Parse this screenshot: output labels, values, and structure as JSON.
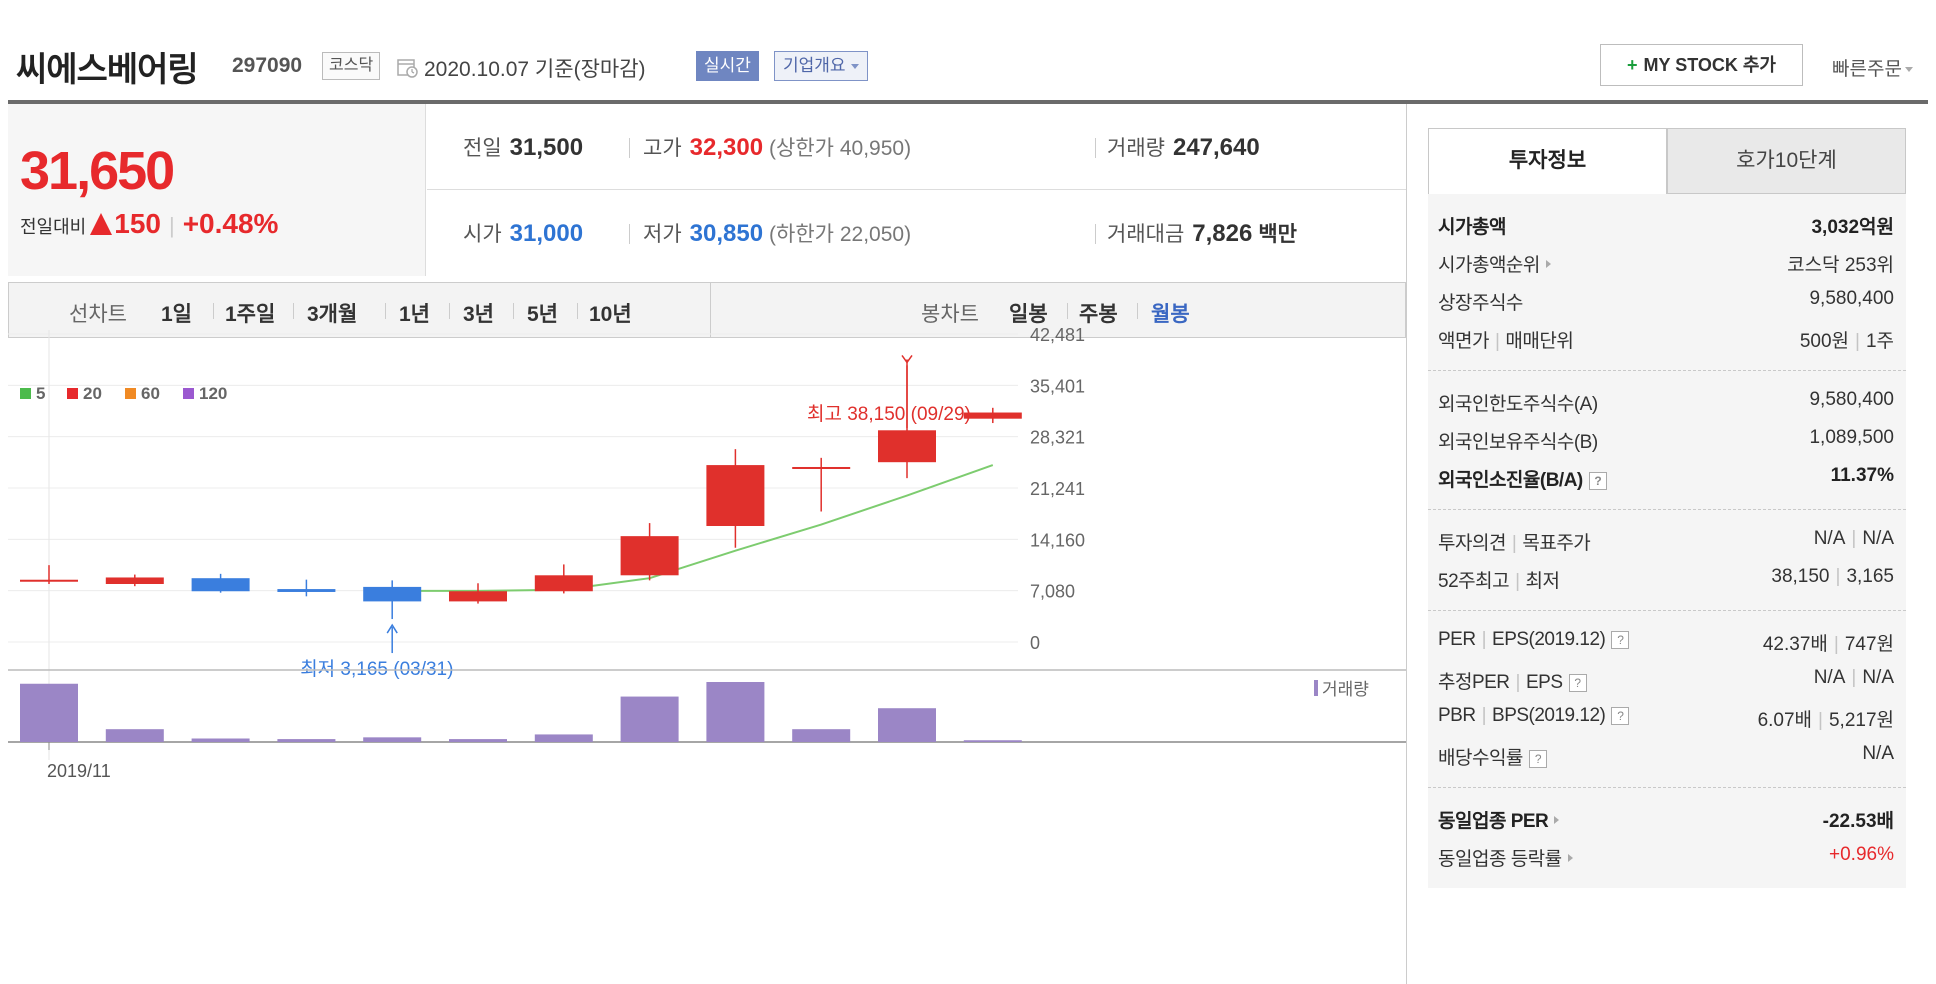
{
  "header": {
    "company_name": "씨에스베어링",
    "stock_code": "297090",
    "market": "코스닥",
    "base_date": "2020.10.07  기준(장마감)",
    "realtime_label": "실시간",
    "company_info_label": "기업개요",
    "mystock_label": "MY STOCK 추가",
    "mystock_plus": "+",
    "quick_order_label": "빠른주문"
  },
  "price": {
    "current": "31,650",
    "change_label": "전일대비",
    "change_amount": "150",
    "change_pct": "+0.48%"
  },
  "quote": {
    "prev_close_label": "전일",
    "prev_close": "31,500",
    "high_label": "고가",
    "high": "32,300",
    "upper_limit": "(상한가 40,950)",
    "volume_label": "거래량",
    "volume": "247,640",
    "open_label": "시가",
    "open": "31,000",
    "low_label": "저가",
    "low": "30,850",
    "lower_limit": "(하한가 22,050)",
    "amount_label": "거래대금",
    "amount": "7,826",
    "amount_unit": "백만"
  },
  "chart_controls": {
    "line_chart_label": "선차트",
    "periods": [
      "1일",
      "1주일",
      "3개월",
      "1년",
      "3년",
      "5년",
      "10년"
    ],
    "candle_chart_label": "봉차트",
    "candle_periods": [
      "일봉",
      "주봉",
      "월봉"
    ],
    "active_candle": "월봉"
  },
  "chart_data": {
    "type": "candlestick",
    "x_start_label": "2019/11",
    "y_ticks": [
      "42,481",
      "35,401",
      "28,321",
      "21,241",
      "14,160",
      "7,080",
      "0"
    ],
    "ylim": [
      0,
      42481
    ],
    "legend": [
      {
        "name": "5",
        "color": "#4cbb4c"
      },
      {
        "name": "20",
        "color": "#e7292c"
      },
      {
        "name": "60",
        "color": "#f08a24"
      },
      {
        "name": "120",
        "color": "#9b59d0"
      }
    ],
    "candles": [
      {
        "open": 8450,
        "close": 8450,
        "high": 10600,
        "low": 8000
      },
      {
        "open": 8000,
        "close": 8900,
        "high": 9300,
        "low": 7700
      },
      {
        "open": 8800,
        "close": 7000,
        "high": 9400,
        "low": 6800
      },
      {
        "open": 7300,
        "close": 6900,
        "high": 8600,
        "low": 6300
      },
      {
        "open": 7600,
        "close": 5600,
        "high": 8500,
        "low": 3165
      },
      {
        "open": 5600,
        "close": 7000,
        "high": 8100,
        "low": 5300
      },
      {
        "open": 7000,
        "close": 9200,
        "high": 10700,
        "low": 6700
      },
      {
        "open": 9200,
        "close": 14600,
        "high": 16400,
        "low": 8500
      },
      {
        "open": 16000,
        "close": 24400,
        "high": 26600,
        "low": 13000
      },
      {
        "open": 24000,
        "close": 24000,
        "high": 25400,
        "low": 18000
      },
      {
        "open": 24800,
        "close": 29200,
        "high": 38150,
        "low": 22600
      },
      {
        "open": 30800,
        "close": 31650,
        "high": 32300,
        "low": 30200
      }
    ],
    "ma20": [
      null,
      null,
      null,
      null,
      7050,
      7050,
      7200,
      8800,
      12600,
      16200,
      20200,
      24400
    ],
    "ma20_color": "#7dcc6f",
    "max_annotation": "최고 38,150 (09/29)",
    "min_annotation": "최저 3,165 (03/31)",
    "volume_label": "거래량",
    "volumes": [
      100,
      22,
      6,
      5,
      8,
      5,
      13,
      78,
      103,
      22,
      58,
      3
    ]
  },
  "side_panel": {
    "tab_active": "투자정보",
    "tab_inactive": "호가10단계",
    "market_cap_label": "시가총액",
    "market_cap": "3,032억원",
    "market_cap_rank_label": "시가총액순위",
    "market_cap_rank": "코스닥 253위",
    "listed_shares_label": "상장주식수",
    "listed_shares": "9,580,400",
    "par_value_label": "액면가",
    "trade_unit_label": "매매단위",
    "par_value": "500원",
    "trade_unit": "1주",
    "foreign_limit_label": "외국인한도주식수(A)",
    "foreign_limit": "9,580,400",
    "foreign_hold_label": "외국인보유주식수(B)",
    "foreign_hold": "1,089,500",
    "foreign_ratio_label": "외국인소진율(B/A)",
    "foreign_ratio": "11.37%",
    "opinion_label": "투자의견",
    "target_label": "목표주가",
    "opinion": "N/A",
    "target": "N/A",
    "w52_high_label": "52주최고",
    "w52_low_label": "최저",
    "w52_high": "38,150",
    "w52_low": "3,165",
    "per_label": "PER",
    "eps_label": "EPS(2019.12)",
    "per": "42.37배",
    "eps": "747원",
    "est_per_label": "추정PER",
    "est_eps_label": "EPS",
    "est_per": "N/A",
    "est_eps": "N/A",
    "pbr_label": "PBR",
    "bps_label": "BPS(2019.12)",
    "pbr": "6.07배",
    "bps": "5,217원",
    "dividend_label": "배당수익률",
    "dividend": "N/A",
    "sector_per_label": "동일업종 PER",
    "sector_per": "-22.53배",
    "sector_change_label": "동일업종 등락률",
    "sector_change": "+0.96%",
    "help_glyph": "?"
  }
}
